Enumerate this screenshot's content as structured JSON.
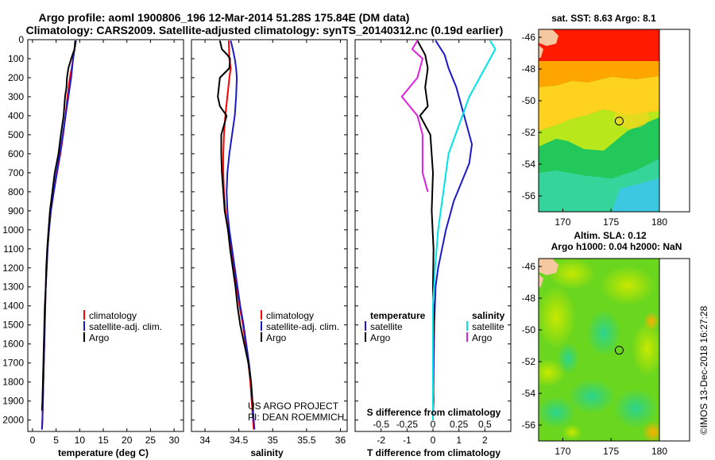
{
  "title": {
    "line1": "Argo profile: aoml 1900806_196 12-Mar-2014 51.28S 175.84E (DM data)",
    "line2": "Climatology: CARS2009. Satellite-adjusted climatology: synTS_20140312.nc (0.19d earlier)"
  },
  "colors": {
    "climatology": "#ff0000",
    "satellite": "#1a1acc",
    "argo": "#000000",
    "sat_salinity": "#00e5e5",
    "argo_salinity": "#e020e0"
  },
  "chart_data": [
    {
      "type": "line",
      "panel": "temperature",
      "xlabel": "temperature (deg C)",
      "x_ticks": [
        "0",
        "5",
        "10",
        "15",
        "20",
        "25",
        "30"
      ],
      "xlim": [
        -1,
        32
      ],
      "ylim": [
        2060,
        0
      ],
      "y_ticks": [
        "0",
        "100",
        "200",
        "300",
        "400",
        "500",
        "600",
        "700",
        "800",
        "900",
        "1000",
        "1100",
        "1200",
        "1300",
        "1400",
        "1500",
        "1600",
        "1700",
        "1800",
        "1900",
        "2000"
      ],
      "legend": [
        "climatology",
        "satellite-adj. clim.",
        "Argo"
      ],
      "series": [
        {
          "name": "climatology",
          "color_key": "climatology",
          "points": [
            [
              9.0,
              5
            ],
            [
              8.9,
              50
            ],
            [
              8.6,
              100
            ],
            [
              8.3,
              150
            ],
            [
              7.9,
              200
            ],
            [
              7.4,
              300
            ],
            [
              7.0,
              400
            ],
            [
              6.5,
              500
            ],
            [
              5.9,
              600
            ],
            [
              5.2,
              700
            ],
            [
              4.5,
              800
            ],
            [
              3.9,
              900
            ],
            [
              3.5,
              1000
            ],
            [
              3.2,
              1100
            ],
            [
              3.0,
              1200
            ],
            [
              2.8,
              1300
            ],
            [
              2.7,
              1400
            ],
            [
              2.6,
              1500
            ],
            [
              2.5,
              1600
            ],
            [
              2.4,
              1700
            ],
            [
              2.3,
              1800
            ],
            [
              2.2,
              1900
            ],
            [
              2.1,
              2000
            ],
            [
              2.0,
              2050
            ]
          ]
        },
        {
          "name": "satellite-adj. clim.",
          "color_key": "satellite",
          "points": [
            [
              9.1,
              5
            ],
            [
              8.9,
              50
            ],
            [
              8.6,
              100
            ],
            [
              8.2,
              200
            ],
            [
              7.6,
              300
            ],
            [
              7.0,
              400
            ],
            [
              6.4,
              500
            ],
            [
              5.8,
              600
            ],
            [
              5.1,
              700
            ],
            [
              4.5,
              800
            ],
            [
              3.9,
              900
            ],
            [
              3.5,
              1000
            ],
            [
              3.2,
              1100
            ],
            [
              3.0,
              1200
            ],
            [
              2.8,
              1300
            ],
            [
              2.7,
              1400
            ],
            [
              2.6,
              1500
            ],
            [
              2.5,
              1600
            ],
            [
              2.4,
              1700
            ],
            [
              2.3,
              1800
            ],
            [
              2.2,
              1900
            ],
            [
              2.1,
              2000
            ],
            [
              2.0,
              2050
            ]
          ]
        },
        {
          "name": "Argo",
          "color_key": "argo",
          "points": [
            [
              9.2,
              5
            ],
            [
              8.9,
              50
            ],
            [
              8.2,
              100
            ],
            [
              7.6,
              150
            ],
            [
              7.3,
              200
            ],
            [
              7.2,
              250
            ],
            [
              6.9,
              300
            ],
            [
              6.6,
              400
            ],
            [
              6.0,
              500
            ],
            [
              5.5,
              600
            ],
            [
              4.7,
              700
            ],
            [
              4.2,
              800
            ],
            [
              3.7,
              900
            ],
            [
              3.4,
              1000
            ],
            [
              3.1,
              1100
            ],
            [
              2.9,
              1200
            ],
            [
              2.8,
              1300
            ],
            [
              2.6,
              1400
            ],
            [
              2.5,
              1500
            ],
            [
              2.4,
              1600
            ],
            [
              2.3,
              1700
            ],
            [
              2.2,
              1800
            ],
            [
              2.1,
              1900
            ],
            [
              2.0,
              1950
            ]
          ]
        }
      ]
    },
    {
      "type": "line",
      "panel": "salinity",
      "xlabel": "salinity",
      "x_ticks": [
        "34",
        "34.5",
        "35",
        "35.5",
        "36"
      ],
      "xlim": [
        33.8,
        36.1
      ],
      "ylim": [
        2060,
        0
      ],
      "legend": [
        "climatology",
        "satellite-adj. clim.",
        "Argo"
      ],
      "credit": [
        "US ARGO PROJECT",
        "PI: DEAN ROEMMICH"
      ],
      "series": [
        {
          "name": "climatology",
          "color_key": "climatology",
          "points": [
            [
              34.35,
              5
            ],
            [
              34.36,
              100
            ],
            [
              34.38,
              150
            ],
            [
              34.36,
              200
            ],
            [
              34.33,
              300
            ],
            [
              34.3,
              400
            ],
            [
              34.28,
              500
            ],
            [
              34.27,
              600
            ],
            [
              34.27,
              700
            ],
            [
              34.28,
              800
            ],
            [
              34.3,
              900
            ],
            [
              34.34,
              1000
            ],
            [
              34.38,
              1100
            ],
            [
              34.42,
              1200
            ],
            [
              34.47,
              1300
            ],
            [
              34.51,
              1400
            ],
            [
              34.56,
              1500
            ],
            [
              34.6,
              1600
            ],
            [
              34.64,
              1700
            ],
            [
              34.67,
              1800
            ],
            [
              34.69,
              1900
            ],
            [
              34.71,
              2000
            ],
            [
              34.72,
              2050
            ]
          ]
        },
        {
          "name": "satellite-adj. clim.",
          "color_key": "satellite",
          "points": [
            [
              34.38,
              5
            ],
            [
              34.41,
              50
            ],
            [
              34.44,
              100
            ],
            [
              34.46,
              150
            ],
            [
              34.47,
              200
            ],
            [
              34.46,
              300
            ],
            [
              34.44,
              400
            ],
            [
              34.4,
              500
            ],
            [
              34.36,
              600
            ],
            [
              34.33,
              700
            ],
            [
              34.32,
              800
            ],
            [
              34.33,
              900
            ],
            [
              34.36,
              1000
            ],
            [
              34.4,
              1100
            ],
            [
              34.44,
              1200
            ],
            [
              34.48,
              1300
            ],
            [
              34.52,
              1400
            ],
            [
              34.57,
              1500
            ],
            [
              34.61,
              1600
            ],
            [
              34.65,
              1700
            ],
            [
              34.68,
              1800
            ],
            [
              34.7,
              1900
            ],
            [
              34.72,
              2000
            ],
            [
              34.73,
              2050
            ]
          ]
        },
        {
          "name": "Argo",
          "color_key": "argo",
          "points": [
            [
              34.22,
              5
            ],
            [
              34.25,
              50
            ],
            [
              34.33,
              80
            ],
            [
              34.37,
              100
            ],
            [
              34.36,
              150
            ],
            [
              34.22,
              200
            ],
            [
              34.19,
              300
            ],
            [
              34.22,
              350
            ],
            [
              34.32,
              400
            ],
            [
              34.24,
              500
            ],
            [
              34.24,
              600
            ],
            [
              34.25,
              700
            ],
            [
              34.27,
              800
            ],
            [
              34.29,
              900
            ],
            [
              34.34,
              1000
            ],
            [
              34.37,
              1100
            ],
            [
              34.41,
              1200
            ],
            [
              34.45,
              1300
            ],
            [
              34.48,
              1400
            ],
            [
              34.52,
              1500
            ],
            [
              34.58,
              1600
            ],
            [
              34.64,
              1700
            ],
            [
              34.68,
              1800
            ],
            [
              34.7,
              1900
            ],
            [
              34.71,
              1950
            ]
          ]
        }
      ]
    },
    {
      "type": "line",
      "panel": "difference",
      "xlabel": "T difference from climatology",
      "xlabel_top": "S difference from climatology",
      "x_ticks": [
        "-2",
        "-1",
        "0",
        "1",
        "2"
      ],
      "x_ticks_s": [
        "-0.5",
        "-0.25",
        "0",
        "0.25",
        "0.5"
      ],
      "xlim": [
        -3,
        3
      ],
      "ylim": [
        2060,
        0
      ],
      "legend_left_title": "temperature",
      "legend_left": [
        "satellite",
        "Argo"
      ],
      "legend_right_title": "salinity",
      "legend_right": [
        "satellite",
        "Argo"
      ],
      "series": [
        {
          "name": "satellite",
          "quantity": "temperature",
          "color_key": "satellite",
          "points": [
            [
              0.1,
              5
            ],
            [
              0.45,
              80
            ],
            [
              0.6,
              150
            ],
            [
              0.9,
              250
            ],
            [
              1.1,
              350
            ],
            [
              1.3,
              450
            ],
            [
              1.5,
              550
            ],
            [
              1.4,
              650
            ],
            [
              1.1,
              750
            ],
            [
              0.8,
              850
            ],
            [
              0.5,
              1000
            ],
            [
              0.35,
              1100
            ],
            [
              0.2,
              1200
            ],
            [
              0.1,
              1300
            ],
            [
              0.05,
              1500
            ],
            [
              0.0,
              2000
            ]
          ]
        },
        {
          "name": "Argo",
          "quantity": "temperature",
          "color_key": "argo",
          "points": [
            [
              -0.6,
              5
            ],
            [
              -0.3,
              80
            ],
            [
              -0.2,
              150
            ],
            [
              -0.3,
              250
            ],
            [
              -0.2,
              350
            ],
            [
              -0.5,
              400
            ],
            [
              -0.1,
              500
            ],
            [
              0.0,
              700
            ],
            [
              -0.05,
              900
            ],
            [
              0.02,
              1100
            ],
            [
              0.0,
              1300
            ],
            [
              0.03,
              1500
            ],
            [
              0.0,
              1700
            ],
            [
              0.02,
              1900
            ],
            [
              0.0,
              1950
            ]
          ]
        },
        {
          "name": "satellite",
          "quantity": "salinity",
          "color_key": "sat_salinity",
          "points": [
            [
              0.55,
              5
            ],
            [
              0.6,
              50
            ],
            [
              0.55,
              100
            ],
            [
              0.45,
              200
            ],
            [
              0.35,
              300
            ],
            [
              0.25,
              450
            ],
            [
              0.15,
              600
            ],
            [
              0.1,
              800
            ],
            [
              0.05,
              1000
            ],
            [
              0.02,
              1200
            ],
            [
              0.0,
              1400
            ],
            [
              0.0,
              1600
            ],
            [
              0.0,
              1800
            ],
            [
              0.0,
              2000
            ]
          ]
        },
        {
          "name": "Argo",
          "quantity": "salinity",
          "color_key": "argo_salinity",
          "points": [
            [
              -0.15,
              5
            ],
            [
              -0.2,
              50
            ],
            [
              -0.1,
              100
            ],
            [
              -0.15,
              200
            ],
            [
              -0.3,
              300
            ],
            [
              -0.15,
              400
            ],
            [
              -0.1,
              500
            ],
            [
              -0.1,
              700
            ],
            [
              -0.05,
              800
            ]
          ]
        }
      ]
    },
    {
      "type": "heatmap",
      "panel": "map_sst",
      "title": "sat. SST: 8.63 Argo: 8.1",
      "x_ticks": [
        "170",
        "175",
        "180"
      ],
      "y_ticks": [
        "-46",
        "-48",
        "-50",
        "-52",
        "-54",
        "-56"
      ],
      "xlim": [
        167.5,
        180
      ],
      "ylim": [
        -57,
        -45.5
      ],
      "argo_position": [
        175.84,
        -51.28
      ]
    },
    {
      "type": "heatmap",
      "panel": "map_sla",
      "title_line1": "Altim. SLA: 0.12",
      "title_line2": "Argo h1000: 0.04 h2000: NaN",
      "x_ticks": [
        "170",
        "175",
        "180"
      ],
      "y_ticks": [
        "-46",
        "-48",
        "-50",
        "-52",
        "-54",
        "-56"
      ],
      "xlim": [
        167.5,
        180
      ],
      "ylim": [
        -57,
        -45.5
      ],
      "argo_position": [
        175.84,
        -51.28
      ]
    }
  ],
  "footer_stamp": "©IMOS 13-Dec-2018 16:27:28"
}
